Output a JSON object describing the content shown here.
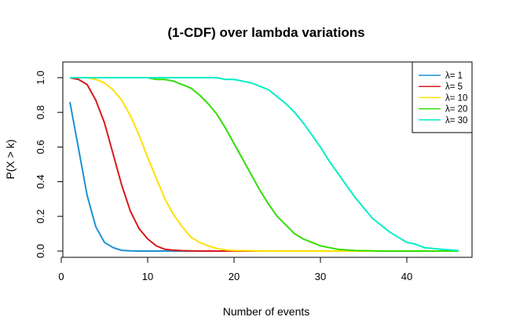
{
  "chart_data": {
    "type": "line",
    "title": "(1-CDF) over lambda variations",
    "xlabel": "Number of events",
    "ylabel": "P(X > k)",
    "xlim": [
      1,
      46
    ],
    "ylim": [
      0,
      1
    ],
    "x_ticks": [
      0,
      10,
      20,
      30,
      40
    ],
    "y_ticks": [
      0.0,
      0.2,
      0.4,
      0.6,
      0.8,
      1.0
    ],
    "x_tick_labels": [
      "0",
      "10",
      "20",
      "30",
      "40"
    ],
    "y_tick_labels": [
      "0.0",
      "0.2",
      "0.4",
      "0.6",
      "0.8",
      "1.0"
    ],
    "legend_position": "top-right",
    "x": [
      1,
      2,
      3,
      4,
      5,
      6,
      7,
      8,
      9,
      10,
      11,
      12,
      13,
      14,
      15,
      16,
      17,
      18,
      19,
      20,
      21,
      22,
      23,
      24,
      25,
      26,
      27,
      28,
      29,
      30,
      31,
      32,
      33,
      34,
      35,
      36,
      37,
      38,
      39,
      40,
      41,
      42,
      43,
      44,
      45,
      46
    ],
    "series": [
      {
        "name": "λ= 1",
        "color": "#1E90D4",
        "values": [
          0.86,
          0.59,
          0.32,
          0.14,
          0.05,
          0.02,
          0.004,
          0.001,
          0,
          0,
          0,
          0,
          0,
          0,
          0,
          0,
          0,
          0,
          0,
          0,
          0,
          0,
          0,
          0,
          0,
          0,
          0,
          0,
          0,
          0,
          0,
          0,
          0,
          0,
          0,
          0,
          0,
          0,
          0,
          0,
          0,
          0,
          0,
          0,
          0,
          0
        ]
      },
      {
        "name": "λ= 5",
        "color": "#D7191C",
        "values": [
          1.0,
          0.99,
          0.96,
          0.87,
          0.74,
          0.56,
          0.38,
          0.23,
          0.13,
          0.07,
          0.03,
          0.01,
          0.005,
          0.002,
          0.001,
          0,
          0,
          0,
          0,
          0,
          0,
          0,
          0,
          0,
          0,
          0,
          0,
          0,
          0,
          0,
          0,
          0,
          0,
          0,
          0,
          0,
          0,
          0,
          0,
          0,
          0,
          0,
          0,
          0,
          0,
          0
        ]
      },
      {
        "name": "λ= 10",
        "color": "#FFE000",
        "values": [
          1.0,
          1.0,
          1.0,
          0.99,
          0.97,
          0.93,
          0.87,
          0.78,
          0.67,
          0.54,
          0.42,
          0.3,
          0.21,
          0.14,
          0.08,
          0.05,
          0.03,
          0.015,
          0.007,
          0.003,
          0.002,
          0.001,
          0,
          0,
          0,
          0,
          0,
          0,
          0,
          0,
          0,
          0,
          0,
          0,
          0,
          0,
          0,
          0,
          0,
          0,
          0,
          0,
          0,
          0,
          0,
          0
        ]
      },
      {
        "name": "λ= 20",
        "color": "#33DD00",
        "values": [
          1.0,
          1.0,
          1.0,
          1.0,
          1.0,
          1.0,
          1.0,
          1.0,
          1.0,
          1.0,
          0.99,
          0.99,
          0.98,
          0.96,
          0.94,
          0.9,
          0.85,
          0.79,
          0.71,
          0.62,
          0.53,
          0.44,
          0.35,
          0.27,
          0.2,
          0.15,
          0.1,
          0.07,
          0.05,
          0.03,
          0.02,
          0.01,
          0.006,
          0.003,
          0.002,
          0.001,
          0,
          0,
          0,
          0,
          0,
          0,
          0,
          0,
          0,
          0
        ]
      },
      {
        "name": "λ= 30",
        "color": "#00EEC6",
        "values": [
          1.0,
          1.0,
          1.0,
          1.0,
          1.0,
          1.0,
          1.0,
          1.0,
          1.0,
          1.0,
          1.0,
          1.0,
          1.0,
          1.0,
          1.0,
          1.0,
          1.0,
          1.0,
          0.99,
          0.99,
          0.98,
          0.97,
          0.95,
          0.93,
          0.89,
          0.85,
          0.8,
          0.74,
          0.67,
          0.6,
          0.52,
          0.45,
          0.38,
          0.31,
          0.25,
          0.19,
          0.15,
          0.11,
          0.08,
          0.05,
          0.04,
          0.02,
          0.015,
          0.01,
          0.006,
          0.003
        ]
      }
    ]
  }
}
